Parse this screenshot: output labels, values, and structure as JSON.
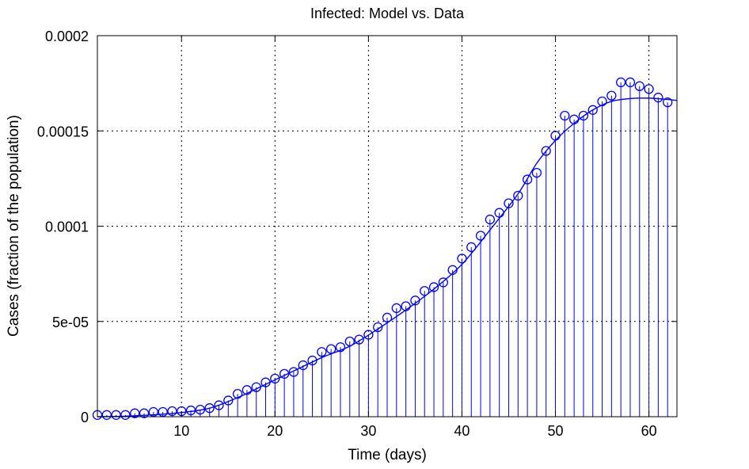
{
  "chart_data": {
    "type": "line",
    "title": "Infected: Model vs. Data",
    "xlabel": "Time (days)",
    "ylabel": "Cases (fraction of the population)",
    "xlim": [
      1,
      63
    ],
    "ylim": [
      0,
      0.0002
    ],
    "grid": true,
    "legend": "none",
    "x_ticks": [
      10,
      20,
      30,
      40,
      50,
      60
    ],
    "x_tick_labels": [
      "10",
      "20",
      "30",
      "40",
      "50",
      "60"
    ],
    "y_ticks": [
      0,
      5e-05,
      0.0001,
      0.00015,
      0.0002
    ],
    "y_tick_labels": [
      "0",
      "5e-05",
      "0.0001",
      "0.00015",
      "0.0002"
    ],
    "colors": {
      "series": "#0000ff",
      "grid": "#000000",
      "axes": "#000000"
    },
    "series": [
      {
        "kind": "stem",
        "marker": "circle",
        "x": [
          1,
          2,
          3,
          4,
          5,
          6,
          7,
          8,
          9,
          10,
          11,
          12,
          13,
          14,
          15,
          16,
          17,
          18,
          19,
          20,
          21,
          22,
          23,
          24,
          25,
          26,
          27,
          28,
          29,
          30,
          31,
          32,
          33,
          34,
          35,
          36,
          37,
          38,
          39,
          40,
          41,
          42,
          43,
          44,
          45,
          46,
          47,
          48,
          49,
          50,
          51,
          52,
          53,
          54,
          55,
          56,
          57,
          58,
          59,
          60,
          61,
          62
        ],
        "values": [
          9e-07,
          9e-07,
          9e-07,
          9e-07,
          1.8e-06,
          1.8e-06,
          2.5e-06,
          2.5e-06,
          2.9e-06,
          2.9e-06,
          3.3e-06,
          3.7e-06,
          4.5e-06,
          6e-06,
          8.5e-06,
          1.2e-05,
          1.4e-05,
          1.55e-05,
          1.8e-05,
          2e-05,
          2.25e-05,
          2.35e-05,
          2.7e-05,
          2.95e-05,
          3.4e-05,
          3.55e-05,
          3.65e-05,
          3.95e-05,
          4.05e-05,
          4.3e-05,
          4.7e-05,
          5.2e-05,
          5.7e-05,
          5.8e-05,
          6.1e-05,
          6.6e-05,
          6.8e-05,
          7.05e-05,
          7.7e-05,
          8.3e-05,
          8.9e-05,
          9.5e-05,
          0.0001035,
          0.000107,
          0.000112,
          0.000116,
          0.0001245,
          0.000128,
          0.0001395,
          0.0001475,
          0.000158,
          0.000156,
          0.000158,
          0.000161,
          0.0001655,
          0.0001685,
          0.0001755,
          0.0001755,
          0.0001735,
          0.000172,
          0.0001675,
          0.000165
        ]
      },
      {
        "kind": "line",
        "x": [
          1,
          4,
          7,
          10,
          13,
          16,
          19,
          22,
          25,
          28,
          31,
          34,
          37,
          40,
          43,
          46,
          48,
          50,
          52,
          54,
          56,
          58,
          60,
          62,
          63
        ],
        "values": [
          0,
          3e-07,
          1e-06,
          2.2e-06,
          4.5e-06,
          1e-05,
          1.7e-05,
          2.4e-05,
          3.1e-05,
          3.7e-05,
          4.6e-05,
          5.6e-05,
          6.7e-05,
          8e-05,
          9.8e-05,
          0.000117,
          0.000133,
          0.000145,
          0.000154,
          0.000161,
          0.0001655,
          0.000167,
          0.0001672,
          0.0001665,
          0.000166
        ]
      }
    ]
  }
}
